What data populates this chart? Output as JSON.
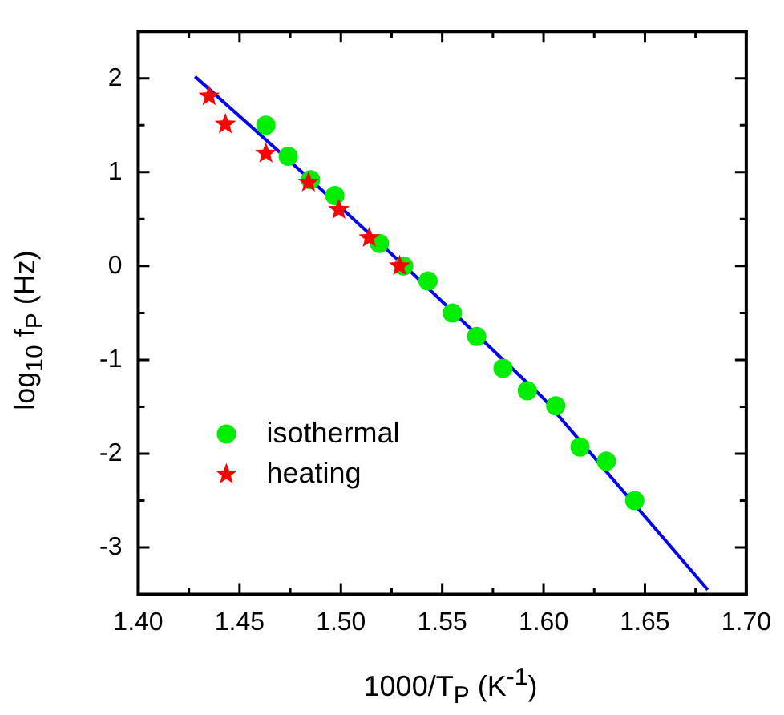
{
  "chart_data": {
    "type": "scatter",
    "xlabel": "1000/T$_{P}$ (K$^{-1}$)",
    "ylabel": "log$_{10}$ f$_{P}$ (Hz)",
    "xlim": [
      1.4,
      1.7
    ],
    "ylim": [
      -3.5,
      2.5
    ],
    "xticks": [
      {
        "value": 1.4,
        "label": "1.40"
      },
      {
        "value": 1.425,
        "label": null
      },
      {
        "value": 1.45,
        "label": "1.45"
      },
      {
        "value": 1.475,
        "label": null
      },
      {
        "value": 1.5,
        "label": "1.50"
      },
      {
        "value": 1.525,
        "label": null
      },
      {
        "value": 1.55,
        "label": "1.55"
      },
      {
        "value": 1.575,
        "label": null
      },
      {
        "value": 1.6,
        "label": "1.60"
      },
      {
        "value": 1.625,
        "label": null
      },
      {
        "value": 1.65,
        "label": "1.65"
      },
      {
        "value": 1.675,
        "label": null
      },
      {
        "value": 1.7,
        "label": "1.70"
      }
    ],
    "yticks": [
      {
        "value": -3.5,
        "label": null
      },
      -3,
      {
        "value": -2.5,
        "label": null
      },
      -2,
      {
        "value": -1.5,
        "label": null
      },
      -1,
      {
        "value": -0.5,
        "label": null
      },
      0,
      {
        "value": 0.5,
        "label": null
      },
      1,
      {
        "value": 1.5,
        "label": null
      },
      2,
      {
        "value": 2.5,
        "label": null
      }
    ],
    "grid": false,
    "legend": "bottom left",
    "series": [
      {
        "name": "isothermal",
        "color": "#00ee00",
        "marker": "circle",
        "x": [
          1.463,
          1.474,
          1.485,
          1.497,
          1.519,
          1.531,
          1.543,
          1.555,
          1.567,
          1.58,
          1.592,
          1.606,
          1.618,
          1.631,
          1.645
        ],
        "values": [
          1.5,
          1.17,
          0.92,
          0.75,
          0.24,
          0,
          -0.16,
          -0.5,
          -0.75,
          -1.09,
          -1.33,
          -1.49,
          -1.93,
          -2.08,
          -2.5
        ]
      },
      {
        "name": "heating",
        "color": "#ff0000",
        "marker": "star",
        "x": [
          1.435,
          1.443,
          1.463,
          1.484,
          1.499,
          1.514,
          1.529
        ],
        "values": [
          1.81,
          1.51,
          1.2,
          0.89,
          0.6,
          0.3,
          0
        ]
      },
      {
        "type": "line",
        "color": "#0000ff",
        "marker": "none",
        "line_style": "solid",
        "x": [
          1.428,
          1.485,
          1.534,
          1.6,
          1.681
        ],
        "values": [
          2.02,
          0.92,
          -0.05,
          -1.41,
          -3.45
        ]
      }
    ]
  }
}
